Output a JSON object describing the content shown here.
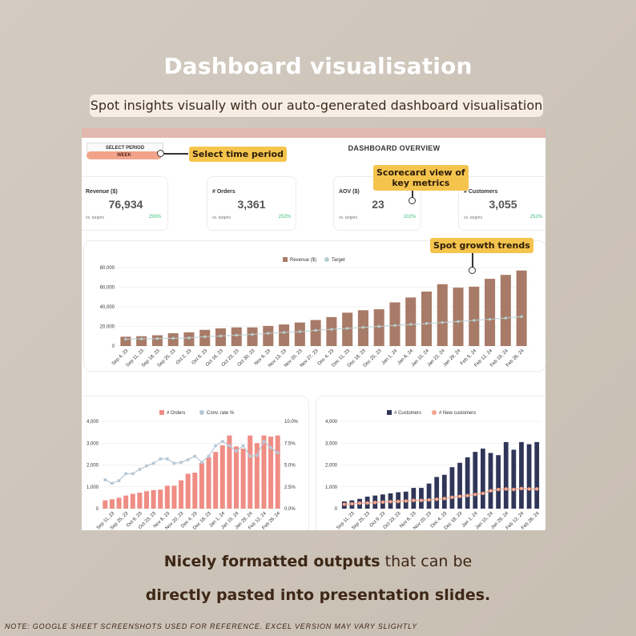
{
  "header": {
    "title": "Dashboard visualisation",
    "subtitle": "Spot insights visually with our auto-generated dashboard visualisation"
  },
  "dashboard": {
    "select_period_label": "SELECT PERIOD",
    "period_value": "WEEK",
    "overview_title": "DASHBOARD OVERVIEW",
    "scorecards": [
      {
        "label": "Revenue ($)",
        "value": "76,934",
        "vs": "vs. targets",
        "pct": "256%"
      },
      {
        "label": "# Orders",
        "value": "3,361",
        "vs": "vs. targets",
        "pct": "252%"
      },
      {
        "label": "AOV ($)",
        "value": "23",
        "vs": "vs. targets",
        "pct": "102%"
      },
      {
        "label": "# Customers",
        "value": "3,055",
        "vs": "vs. targets",
        "pct": "252%"
      }
    ]
  },
  "callouts": {
    "time_period": "Select time period",
    "scorecard_line1": "Scorecard view of",
    "scorecard_line2": "key metrics",
    "growth": "Spot growth trends"
  },
  "colors": {
    "revenue_bar": "#a87b68",
    "target_line": "#b8cfd1",
    "orders_bar": "#ef8d85",
    "conv_line": "#b6c8d6",
    "customers_bar": "#2f3658",
    "new_customers_line": "#f2a48b",
    "callout_bg": "#f5c44d"
  },
  "chart_data": [
    {
      "type": "bar",
      "legend": [
        "Revenue ($)",
        "Target"
      ],
      "x": [
        "Sep 4, 23",
        "Sep 11, 23",
        "Sep 18, 23",
        "Sep 25, 23",
        "Oct 2, 23",
        "Oct 9, 23",
        "Oct 16, 23",
        "Oct 23, 23",
        "Oct 30, 23",
        "Nov 6, 23",
        "Nov 13, 23",
        "Nov 20, 23",
        "Nov 27, 23",
        "Dec 4, 23",
        "Dec 11, 23",
        "Dec 18, 23",
        "Dec 25, 23",
        "Jan 1, 24",
        "Jan 8, 24",
        "Jan 15, 24",
        "Jan 22, 24",
        "Jan 29, 24",
        "Feb 5, 24",
        "Feb 12, 24",
        "Feb 19, 24",
        "Feb 26, 24"
      ],
      "x_labels": [
        "Sep 4, 23",
        "Sep 11, 23",
        "Sep 18, 23",
        "Sep 25, 23",
        "Oct 2, 23",
        "Oct 9, 23",
        "Oct 16, 23",
        "Oct 23, 23",
        "Oct 30, 23",
        "Nov 6, 23",
        "Nov 13, 23",
        "Nov 20, 23",
        "Nov 27, 23",
        "Dec 4, 23",
        "Dec 11, 23",
        "Dec 18, 23",
        "Dec 25, 23",
        "Jan 1, 24",
        "Jan 8, 24",
        "Jan 15, 24",
        "Jan 22, 24",
        "Jan 29, 24",
        "Feb 5, 24",
        "Feb 12, 24",
        "Feb 19, 24",
        "Feb 26, 24"
      ],
      "series": [
        {
          "name": "Revenue ($)",
          "type": "bar",
          "values": [
            9500,
            10000,
            11000,
            13000,
            14000,
            16500,
            18000,
            19000,
            19000,
            20500,
            22000,
            24000,
            26500,
            29500,
            34000,
            36500,
            37500,
            44500,
            49500,
            55500,
            63000,
            59500,
            60500,
            68500,
            72500,
            77000
          ]
        },
        {
          "name": "Target",
          "type": "line",
          "values": [
            7000,
            7300,
            7600,
            7900,
            8300,
            9500,
            10200,
            11100,
            11800,
            13000,
            13900,
            14600,
            16000,
            17000,
            18000,
            19000,
            20000,
            21000,
            22000,
            23000,
            24000,
            25000,
            26200,
            27200,
            28500,
            30000
          ]
        }
      ],
      "ylim": [
        0,
        80000
      ],
      "y_ticks": [
        "0",
        "20,000",
        "40,000",
        "60,000",
        "80,000"
      ],
      "grid": true,
      "legend_position": "top"
    },
    {
      "type": "bar",
      "legend": [
        "# Orders",
        "Conv. rate %"
      ],
      "x": [
        "Sep 4, 23",
        "Sep 11, 23",
        "Sep 18, 23",
        "Sep 25, 23",
        "Oct 2, 23",
        "Oct 9, 23",
        "Oct 16, 23",
        "Oct 23, 23",
        "Oct 30, 23",
        "Nov 6, 23",
        "Nov 13, 23",
        "Nov 20, 23",
        "Nov 27, 23",
        "Dec 4, 23",
        "Dec 11, 23",
        "Dec 18, 23",
        "Dec 25, 23",
        "Jan 1, 24",
        "Jan 8, 24",
        "Jan 15, 24",
        "Jan 22, 24",
        "Jan 29, 24",
        "Feb 5, 24",
        "Feb 12, 24",
        "Feb 19, 24",
        "Feb 26, 24"
      ],
      "x_labels": [
        "Sep 11, 23",
        "Sep 25, 23",
        "Oct 9, 23",
        "Oct 23, 23",
        "Nov 6, 23",
        "Nov 20, 23",
        "Dec 4, 23",
        "Dec 18, 23",
        "Jan 1, 24",
        "Jan 15, 24",
        "Jan 29, 24",
        "Feb 12, 24",
        "Feb 26, 24"
      ],
      "series": [
        {
          "name": "# Orders",
          "type": "bar",
          "axis": "left",
          "values": [
            380,
            430,
            500,
            600,
            680,
            730,
            800,
            850,
            870,
            1050,
            1050,
            1300,
            1600,
            1650,
            2100,
            2350,
            2600,
            2900,
            3350,
            2850,
            2750,
            3350,
            3000,
            3350,
            3300,
            3350
          ]
        },
        {
          "name": "Conv. rate %",
          "type": "line",
          "axis": "right",
          "values": [
            3.3,
            2.9,
            3.2,
            4.0,
            4.0,
            4.5,
            4.9,
            5.2,
            5.7,
            5.7,
            5.2,
            5.3,
            5.6,
            6.0,
            5.3,
            6.0,
            7.2,
            7.7,
            7.2,
            6.6,
            7.2,
            6.0,
            6.1,
            7.7,
            7.0,
            6.4
          ]
        }
      ],
      "ylim": [
        0,
        4000
      ],
      "y_ticks": [
        "0",
        "1,000",
        "2,000",
        "3,000",
        "4,000"
      ],
      "y2lim": [
        0,
        10
      ],
      "y2_ticks": [
        "0.0%",
        "2.5%",
        "5.0%",
        "7.5%",
        "10.0%"
      ],
      "grid": true,
      "legend_position": "top"
    },
    {
      "type": "bar",
      "legend": [
        "# Customers",
        "# New customers"
      ],
      "x": [
        "Sep 4, 23",
        "Sep 11, 23",
        "Sep 18, 23",
        "Sep 25, 23",
        "Oct 2, 23",
        "Oct 9, 23",
        "Oct 16, 23",
        "Oct 23, 23",
        "Oct 30, 23",
        "Nov 6, 23",
        "Nov 13, 23",
        "Nov 20, 23",
        "Nov 27, 23",
        "Dec 4, 23",
        "Dec 11, 23",
        "Dec 18, 23",
        "Dec 25, 23",
        "Jan 1, 24",
        "Jan 8, 24",
        "Jan 15, 24",
        "Jan 22, 24",
        "Jan 29, 24",
        "Feb 5, 24",
        "Feb 12, 24",
        "Feb 19, 24",
        "Feb 26, 24"
      ],
      "x_labels": [
        "Sep 11, 23",
        "Sep 25, 23",
        "Oct 9, 23",
        "Oct 23, 23",
        "Nov 6, 23",
        "Nov 20, 23",
        "Dec 4, 23",
        "Dec 18, 23",
        "Jan 1, 24",
        "Jan 15, 24",
        "Jan 29, 24",
        "Feb 12, 24",
        "Feb 26, 24"
      ],
      "series": [
        {
          "name": "# Customers",
          "type": "bar",
          "values": [
            330,
            380,
            450,
            550,
            600,
            650,
            700,
            750,
            780,
            950,
            950,
            1150,
            1450,
            1550,
            1900,
            2100,
            2350,
            2600,
            2750,
            2550,
            2450,
            3050,
            2700,
            3050,
            2950,
            3050
          ]
        },
        {
          "name": "# New customers",
          "type": "line",
          "values": [
            200,
            220,
            250,
            260,
            280,
            300,
            320,
            330,
            350,
            380,
            380,
            400,
            430,
            460,
            520,
            560,
            600,
            650,
            700,
            820,
            880,
            900,
            880,
            920,
            900,
            900
          ]
        }
      ],
      "ylim": [
        0,
        4000
      ],
      "y_ticks": [
        "0",
        "1,000",
        "2,000",
        "3,000",
        "4,000"
      ],
      "grid": true,
      "legend_position": "top"
    }
  ],
  "footer": {
    "line1_bold": "Nicely formatted outputs",
    "line1_rest": " that can be",
    "line2_bold": "directly pasted into presentation slides.",
    "note": "NOTE: GOOGLE SHEET SCREENSHOTS USED FOR REFERENCE. EXCEL VERSION MAY VARY SLIGHTLY"
  }
}
